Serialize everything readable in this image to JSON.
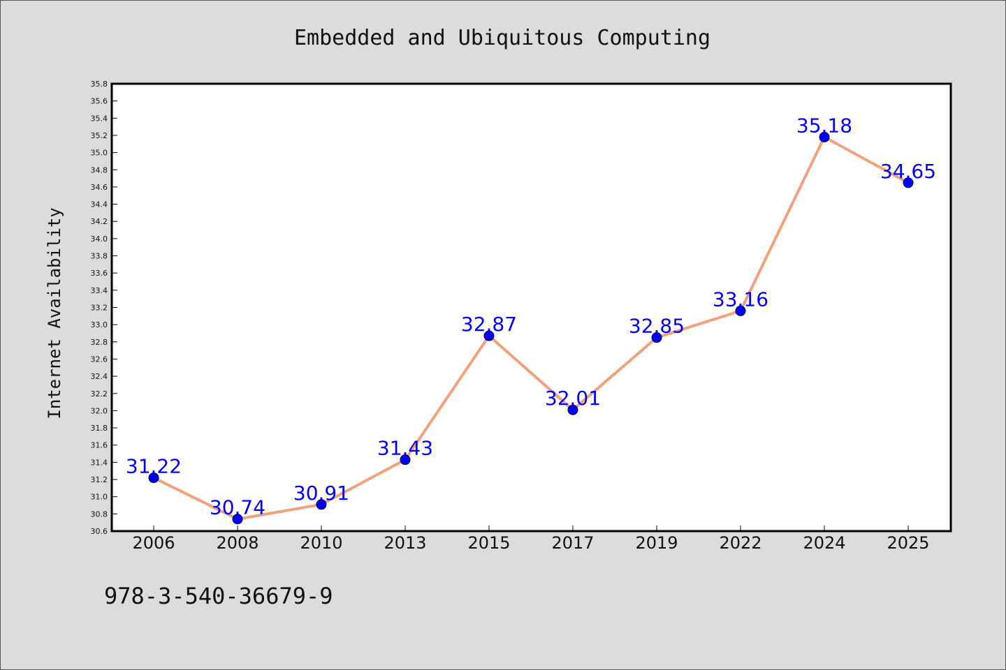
{
  "colors": {
    "background": "#dcdcdc",
    "plot_background": "#ffffff",
    "line": "#f4a07a",
    "marker": "#0000ff",
    "data_label": "#0000ff"
  },
  "chart_data": {
    "type": "line",
    "title": "Embedded and Ubiquitous Computing",
    "xlabel": "",
    "ylabel": "Internet Availability",
    "categories": [
      "2006",
      "2008",
      "2010",
      "2013",
      "2015",
      "2017",
      "2019",
      "2022",
      "2024",
      "2025"
    ],
    "series": [
      {
        "values": [
          31.22,
          30.74,
          30.91,
          31.43,
          32.87,
          32.01,
          32.85,
          33.16,
          35.18,
          34.65
        ],
        "labels": [
          "31.22",
          "30.74",
          "30.91",
          "31.43",
          "32.87",
          "32.01",
          "32.85",
          "33.16",
          "35.18",
          "34.65"
        ]
      }
    ],
    "ylim": [
      30.6,
      35.8
    ],
    "yticks": [
      "30.6",
      "30.8",
      "31.0",
      "31.2",
      "31.4",
      "31.6",
      "31.8",
      "32.0",
      "32.2",
      "32.4",
      "32.6",
      "32.8",
      "33.0",
      "33.2",
      "33.4",
      "33.6",
      "33.8",
      "34.0",
      "34.2",
      "34.4",
      "34.6",
      "34.8",
      "35.0",
      "35.2",
      "35.4",
      "35.6",
      "35.8"
    ],
    "grid": false,
    "legend": "none"
  },
  "footer": {
    "isbn": "978-3-540-36679-9"
  }
}
